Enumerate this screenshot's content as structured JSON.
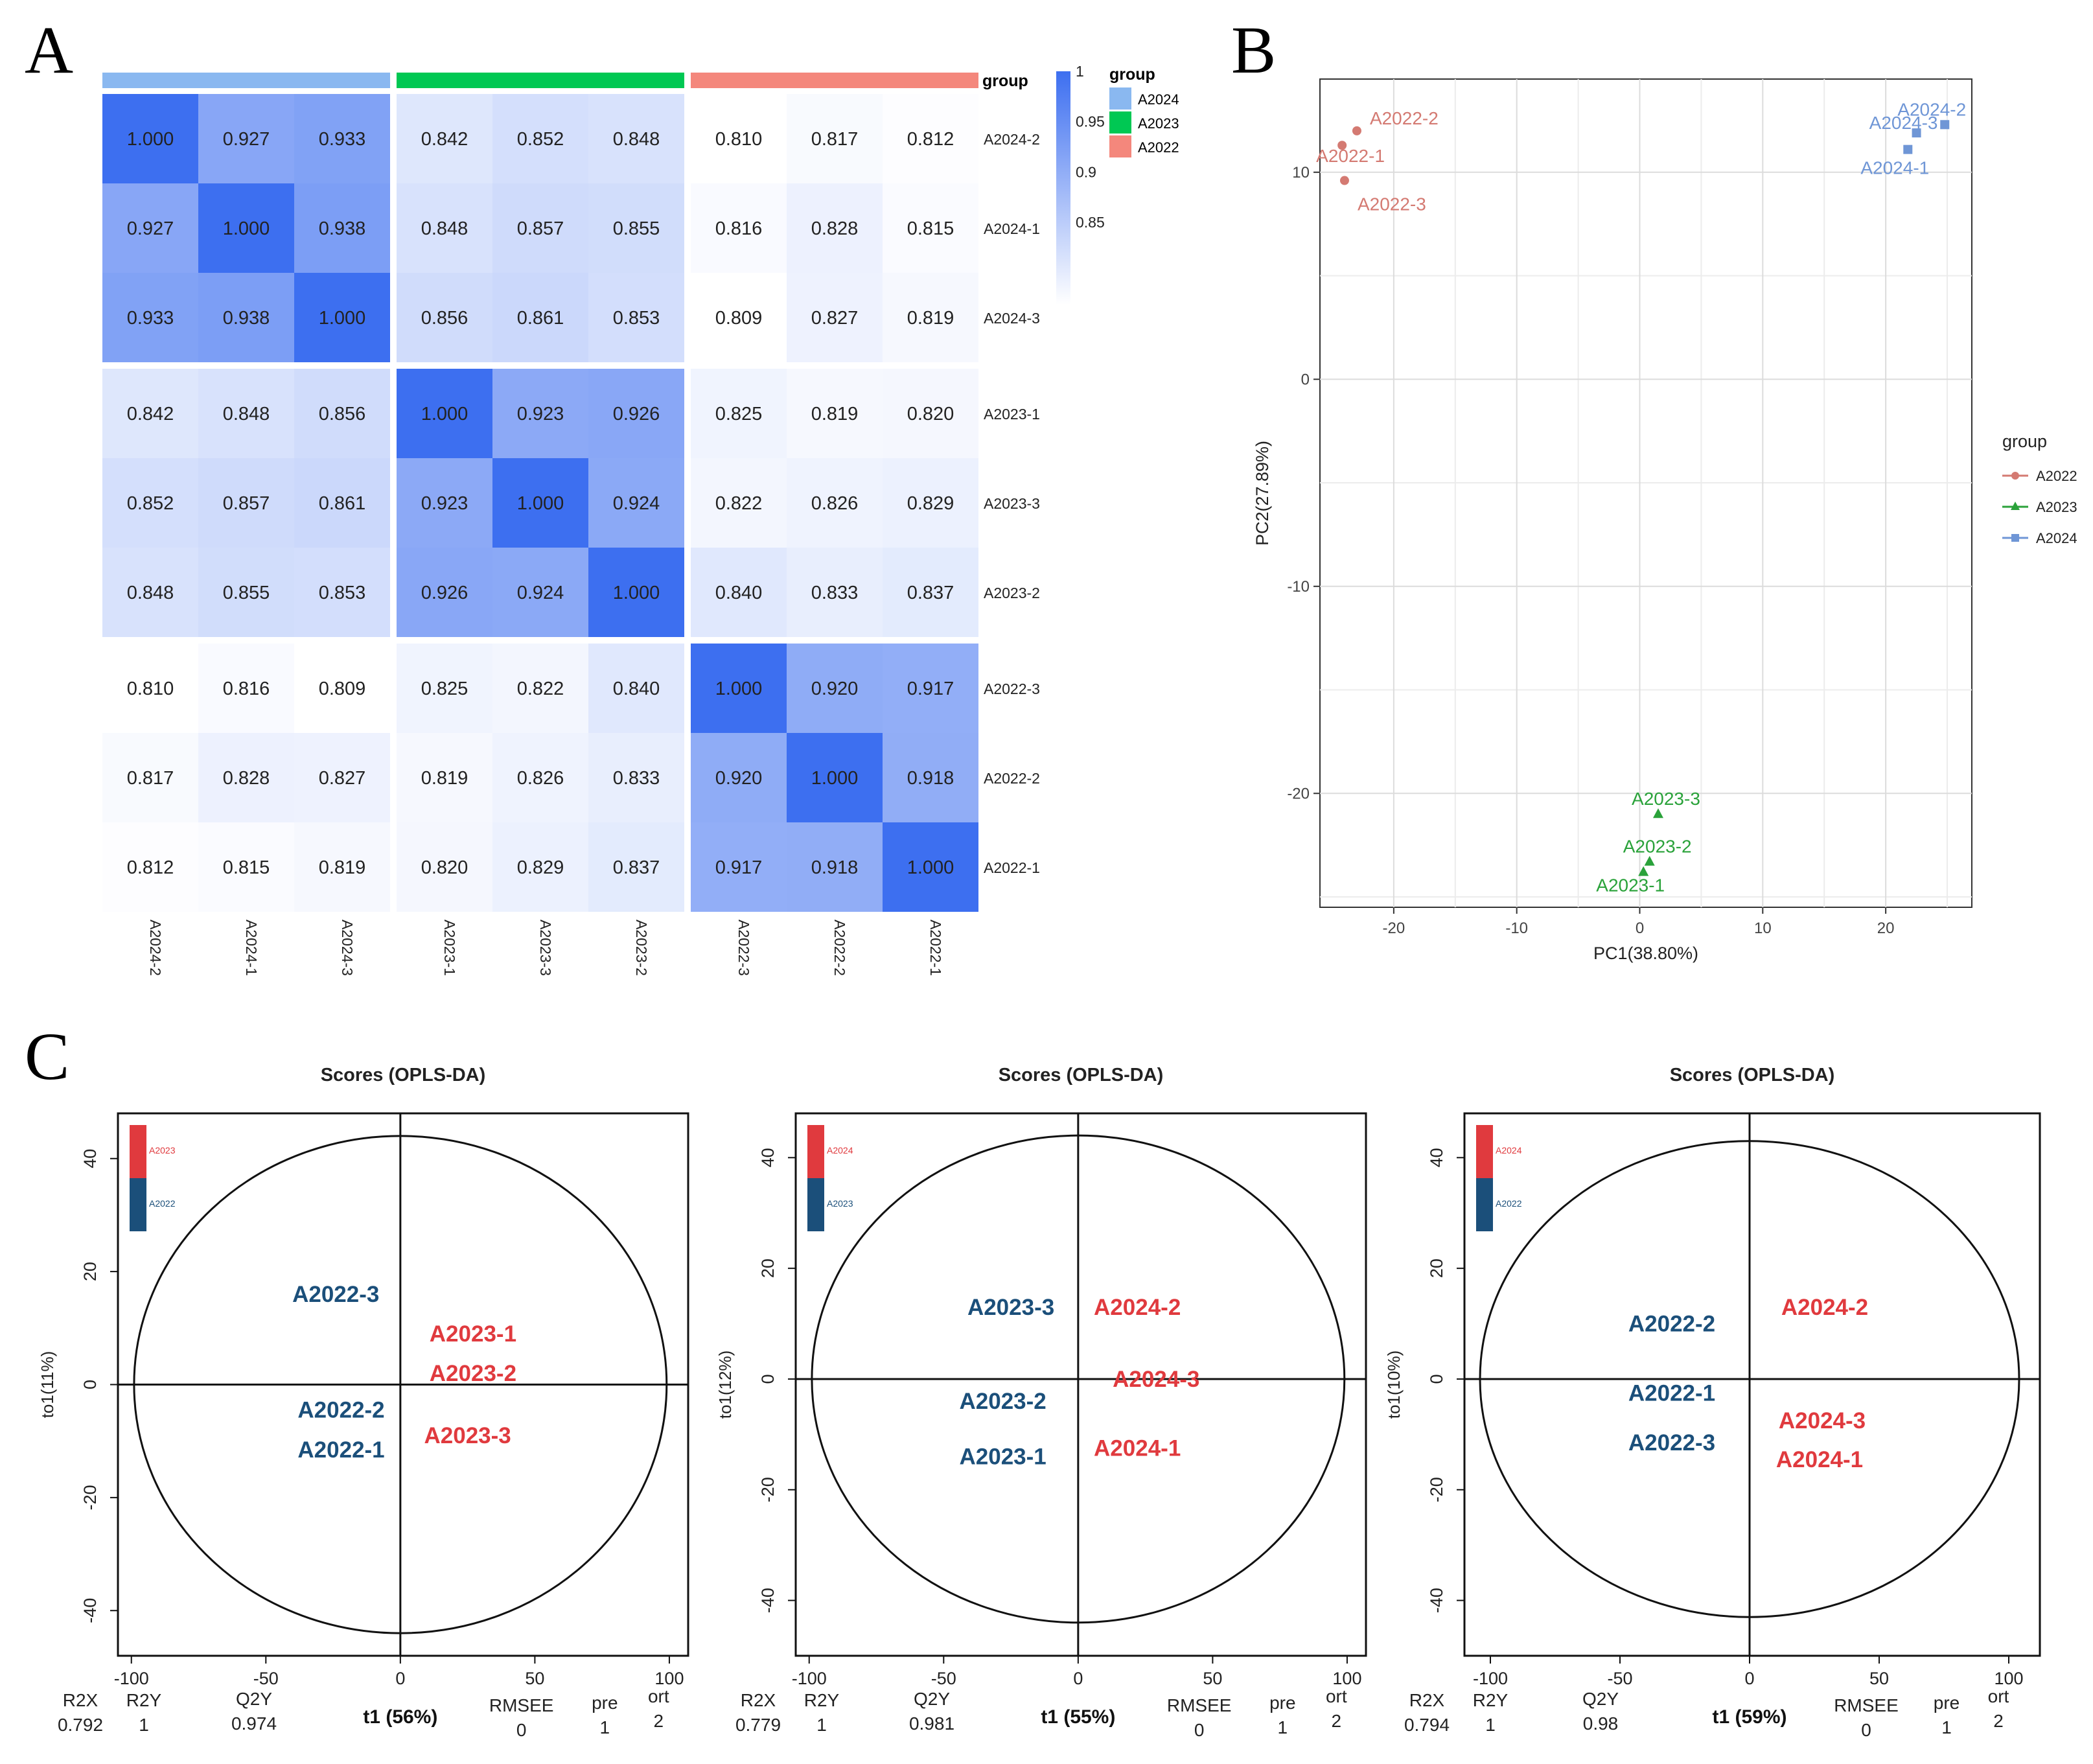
{
  "figure": {
    "panel_labels": [
      "A",
      "B",
      "C"
    ]
  },
  "colors": {
    "A2024": "#8ab8f0",
    "A2023": "#00c853",
    "A2022": "#f4877c",
    "heat_low": "#ffffff",
    "heat_high": "#3d6ff0",
    "pca_A2022": "#d47a72",
    "pca_A2023": "#2aa23a",
    "pca_A2024": "#6f96d6",
    "opls_red": "#e03a3e",
    "opls_blue": "#1b4f7a"
  },
  "chart_data": [
    {
      "type": "heatmap",
      "panel": "A",
      "row_labels": [
        "A2024-2",
        "A2024-1",
        "A2024-3",
        "A2023-1",
        "A2023-3",
        "A2023-2",
        "A2022-3",
        "A2022-2",
        "A2022-1"
      ],
      "col_labels": [
        "A2024-2",
        "A2024-1",
        "A2024-3",
        "A2023-1",
        "A2023-3",
        "A2023-2",
        "A2022-3",
        "A2022-2",
        "A2022-1"
      ],
      "row_groups": [
        "A2024",
        "A2024",
        "A2024",
        "A2023",
        "A2023",
        "A2023",
        "A2022",
        "A2022",
        "A2022"
      ],
      "values": [
        [
          "1.000",
          "0.927",
          "0.933",
          "0.842",
          "0.852",
          "0.848",
          "0.810",
          "0.817",
          "0.812"
        ],
        [
          "0.927",
          "1.000",
          "0.938",
          "0.848",
          "0.857",
          "0.855",
          "0.816",
          "0.828",
          "0.815"
        ],
        [
          "0.933",
          "0.938",
          "1.000",
          "0.856",
          "0.861",
          "0.853",
          "0.809",
          "0.827",
          "0.819"
        ],
        [
          "0.842",
          "0.848",
          "0.856",
          "1.000",
          "0.923",
          "0.926",
          "0.825",
          "0.819",
          "0.820"
        ],
        [
          "0.852",
          "0.857",
          "0.861",
          "0.923",
          "1.000",
          "0.924",
          "0.822",
          "0.826",
          "0.829"
        ],
        [
          "0.848",
          "0.855",
          "0.853",
          "0.926",
          "0.924",
          "1.000",
          "0.840",
          "0.833",
          "0.837"
        ],
        [
          "0.810",
          "0.816",
          "0.809",
          "0.825",
          "0.822",
          "0.840",
          "1.000",
          "0.920",
          "0.917"
        ],
        [
          "0.817",
          "0.828",
          "0.827",
          "0.819",
          "0.826",
          "0.833",
          "0.920",
          "1.000",
          "0.918"
        ],
        [
          "0.812",
          "0.815",
          "0.819",
          "0.820",
          "0.829",
          "0.837",
          "0.917",
          "0.918",
          "1.000"
        ]
      ],
      "group_bar_label": "group",
      "color_scale": {
        "min": 0.81,
        "max": 1.0,
        "ticks": [
          "1",
          "0.95",
          "0.9",
          "0.85"
        ],
        "tick_values": [
          1.0,
          0.95,
          0.9,
          0.85
        ]
      },
      "legend": {
        "title": "group",
        "entries": [
          "A2024",
          "A2023",
          "A2022"
        ]
      }
    },
    {
      "type": "scatter",
      "panel": "B",
      "xlabel": "PC1(38.80%)",
      "ylabel": "PC2(27.89%)",
      "xlim": [
        -26,
        27
      ],
      "ylim": [
        -25.5,
        14.5
      ],
      "xticks": [
        -20,
        -10,
        0,
        10,
        20
      ],
      "yticks": [
        10,
        0,
        -10,
        -20
      ],
      "legend": {
        "title": "group",
        "entries": [
          "A2022",
          "A2023",
          "A2024"
        ]
      },
      "series": [
        {
          "name": "A2022",
          "points": [
            {
              "label": "A2022-2",
              "x": -23,
              "y": 12.0
            },
            {
              "label": "A2022-1",
              "x": -24.2,
              "y": 11.3
            },
            {
              "label": "A2022-3",
              "x": -24,
              "y": 9.6
            }
          ]
        },
        {
          "name": "A2023",
          "points": [
            {
              "label": "A2023-3",
              "x": 1.5,
              "y": -21.0
            },
            {
              "label": "A2023-2",
              "x": 0.8,
              "y": -23.3
            },
            {
              "label": "A2023-1",
              "x": 0.3,
              "y": -23.8
            }
          ]
        },
        {
          "name": "A2024",
          "points": [
            {
              "label": "A2024-2",
              "x": 24.8,
              "y": 12.3
            },
            {
              "label": "A2024-3",
              "x": 22.5,
              "y": 11.9
            },
            {
              "label": "A2024-1",
              "x": 21.8,
              "y": 11.1
            }
          ]
        }
      ]
    },
    {
      "type": "scatter",
      "panel": "C1",
      "title": "Scores (OPLS-DA)",
      "xlabel": "t1 (56%)",
      "ylabel": "to1(11%)",
      "xlim": [
        -105,
        107
      ],
      "ylim": [
        -48,
        48
      ],
      "xticks": [
        -100,
        -50,
        0,
        50,
        100
      ],
      "yticks": [
        40,
        20,
        0,
        -20,
        -40
      ],
      "ellipse": {
        "rx": 99,
        "ry": 44
      },
      "legend": [
        "A2023",
        "A2022"
      ],
      "points": [
        {
          "label": "A2022-3",
          "x": -24,
          "y": 16,
          "group": "A2022"
        },
        {
          "label": "A2023-1",
          "x": 27,
          "y": 9,
          "group": "A2023"
        },
        {
          "label": "A2023-2",
          "x": 27,
          "y": 2,
          "group": "A2023"
        },
        {
          "label": "A2022-2",
          "x": -22,
          "y": -4.5,
          "group": "A2022"
        },
        {
          "label": "A2023-3",
          "x": 25,
          "y": -9,
          "group": "A2023"
        },
        {
          "label": "A2022-1",
          "x": -22,
          "y": -11.5,
          "group": "A2022"
        }
      ],
      "stats_labels": [
        "R2X",
        "R2Y",
        "Q2Y",
        "RMSEE",
        "pre",
        "ort"
      ],
      "stats_values": [
        "0.792",
        "1",
        "0.974",
        "0",
        "1",
        "2"
      ]
    },
    {
      "type": "scatter",
      "panel": "C2",
      "title": "Scores (OPLS-DA)",
      "xlabel": "t1 (55%)",
      "ylabel": "to1(12%)",
      "xlim": [
        -105,
        107
      ],
      "ylim": [
        -50,
        48
      ],
      "xticks": [
        -100,
        -50,
        0,
        50,
        100
      ],
      "yticks": [
        40,
        20,
        0,
        -20,
        -40
      ],
      "ellipse": {
        "rx": 99,
        "ry": 44
      },
      "legend": [
        "A2024",
        "A2023"
      ],
      "points": [
        {
          "label": "A2023-3",
          "x": -25,
          "y": 13,
          "group": "A2023"
        },
        {
          "label": "A2024-2",
          "x": 22,
          "y": 13,
          "group": "A2024"
        },
        {
          "label": "A2024-3",
          "x": 29,
          "y": 0,
          "group": "A2024"
        },
        {
          "label": "A2023-2",
          "x": -28,
          "y": -4,
          "group": "A2023"
        },
        {
          "label": "A2024-1",
          "x": 22,
          "y": -12.5,
          "group": "A2024"
        },
        {
          "label": "A2023-1",
          "x": -28,
          "y": -14,
          "group": "A2023"
        }
      ],
      "stats_labels": [
        "R2X",
        "R2Y",
        "Q2Y",
        "RMSEE",
        "pre",
        "ort"
      ],
      "stats_values": [
        "0.779",
        "1",
        "0.981",
        "0",
        "1",
        "2"
      ]
    },
    {
      "type": "scatter",
      "panel": "C3",
      "title": "Scores (OPLS-DA)",
      "xlabel": "t1 (59%)",
      "ylabel": "to1(10%)",
      "xlim": [
        -110,
        112
      ],
      "ylim": [
        -50,
        48
      ],
      "xticks": [
        -100,
        -50,
        0,
        50,
        100
      ],
      "yticks": [
        40,
        20,
        0,
        -20,
        -40
      ],
      "ellipse": {
        "rx": 104,
        "ry": 43
      },
      "legend": [
        "A2024",
        "A2022"
      ],
      "points": [
        {
          "label": "A2022-2",
          "x": -30,
          "y": 10,
          "group": "A2022"
        },
        {
          "label": "A2024-2",
          "x": 29,
          "y": 13,
          "group": "A2024"
        },
        {
          "label": "A2022-1",
          "x": -30,
          "y": -2.5,
          "group": "A2022"
        },
        {
          "label": "A2024-3",
          "x": 28,
          "y": -7.5,
          "group": "A2024"
        },
        {
          "label": "A2022-3",
          "x": -30,
          "y": -11.5,
          "group": "A2022"
        },
        {
          "label": "A2024-1",
          "x": 27,
          "y": -14.5,
          "group": "A2024"
        }
      ],
      "stats_labels": [
        "R2X",
        "R2Y",
        "Q2Y",
        "RMSEE",
        "pre",
        "ort"
      ],
      "stats_values": [
        "0.794",
        "1",
        "0.98",
        "0",
        "1",
        "2"
      ]
    }
  ]
}
